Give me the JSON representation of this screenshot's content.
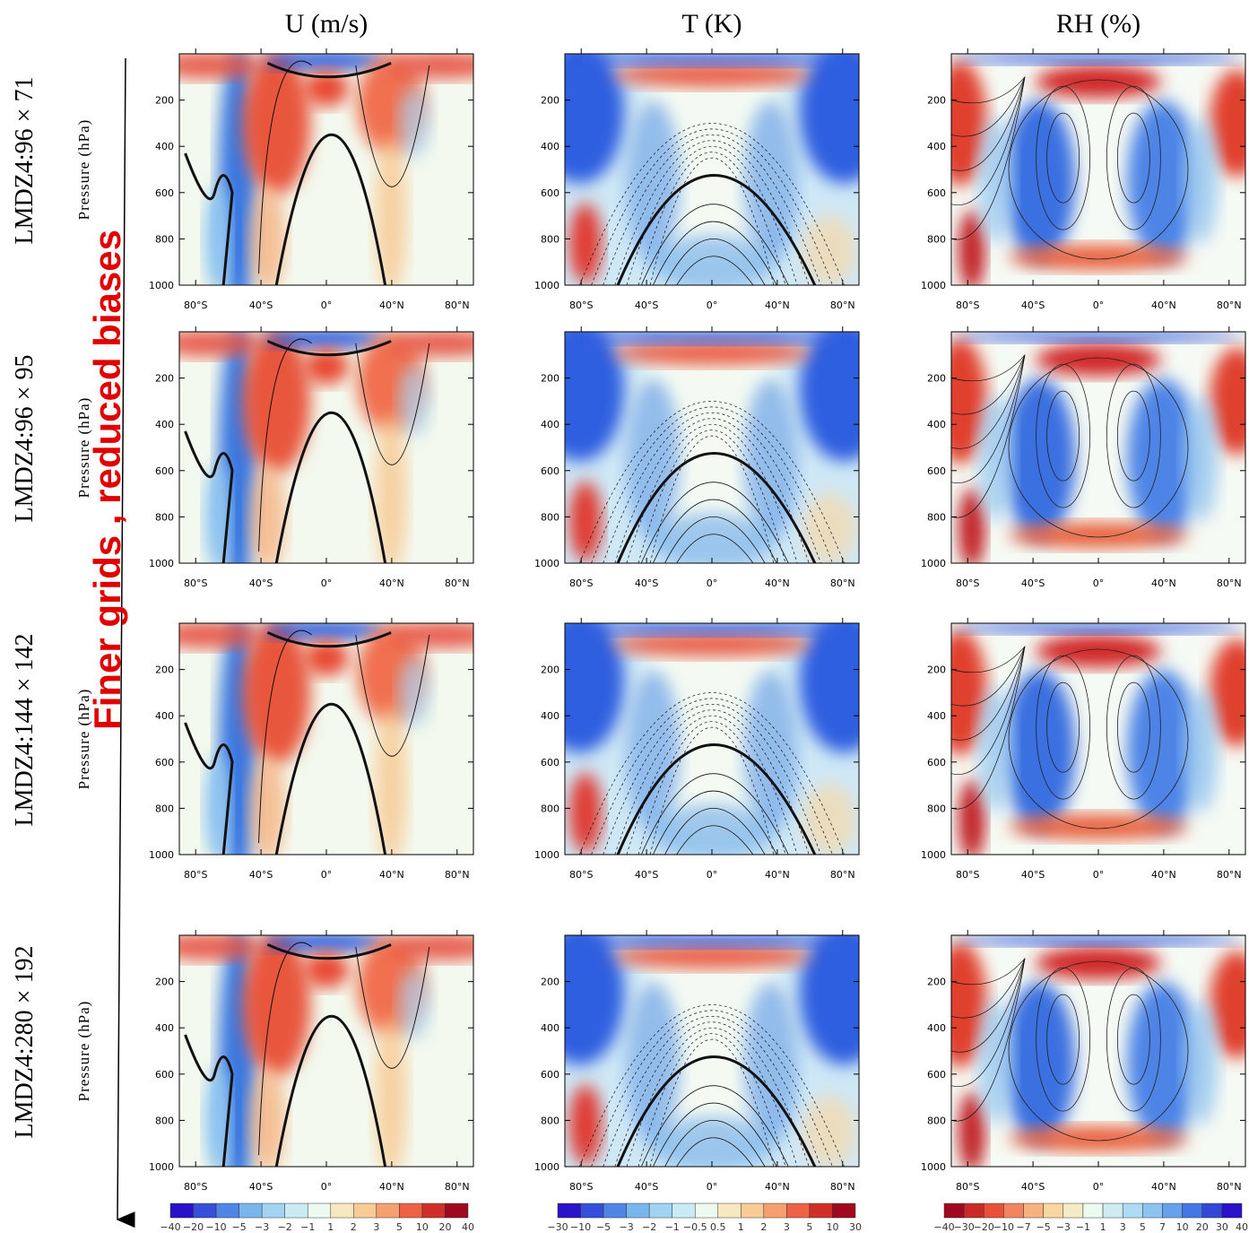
{
  "columns": [
    "U (m/s)",
    "T (K)",
    "RH (%)"
  ],
  "rows": [
    "LMDZ4:96 × 71",
    "LMDZ4:96 × 95",
    "LMDZ4:144 × 142",
    "LMDZ4:280 × 192"
  ],
  "y_axis_label": "Pressure (hPa)",
  "pressure_ticks": [
    "200",
    "400",
    "600",
    "800",
    "1000"
  ],
  "latitude_ticks": [
    "80°S",
    "40°S",
    "0°",
    "40°N",
    "80°N"
  ],
  "colorbars": [
    [
      "−40",
      "−20",
      "−10",
      "−5",
      "−3",
      "−2",
      "−1",
      "1",
      "2",
      "3",
      "5",
      "10",
      "20",
      "40"
    ],
    [
      "−30",
      "−10",
      "−5",
      "−3",
      "−2",
      "−1",
      "−0.5",
      "0.5",
      "1",
      "2",
      "3",
      "5",
      "10",
      "30"
    ],
    [
      "−40",
      "−30",
      "−20",
      "−10",
      "−7",
      "−5",
      "−3",
      "−1",
      "1",
      "3",
      "5",
      "7",
      "10",
      "20",
      "30",
      "40"
    ]
  ],
  "annotation": "Finer grids , reduced biases"
}
